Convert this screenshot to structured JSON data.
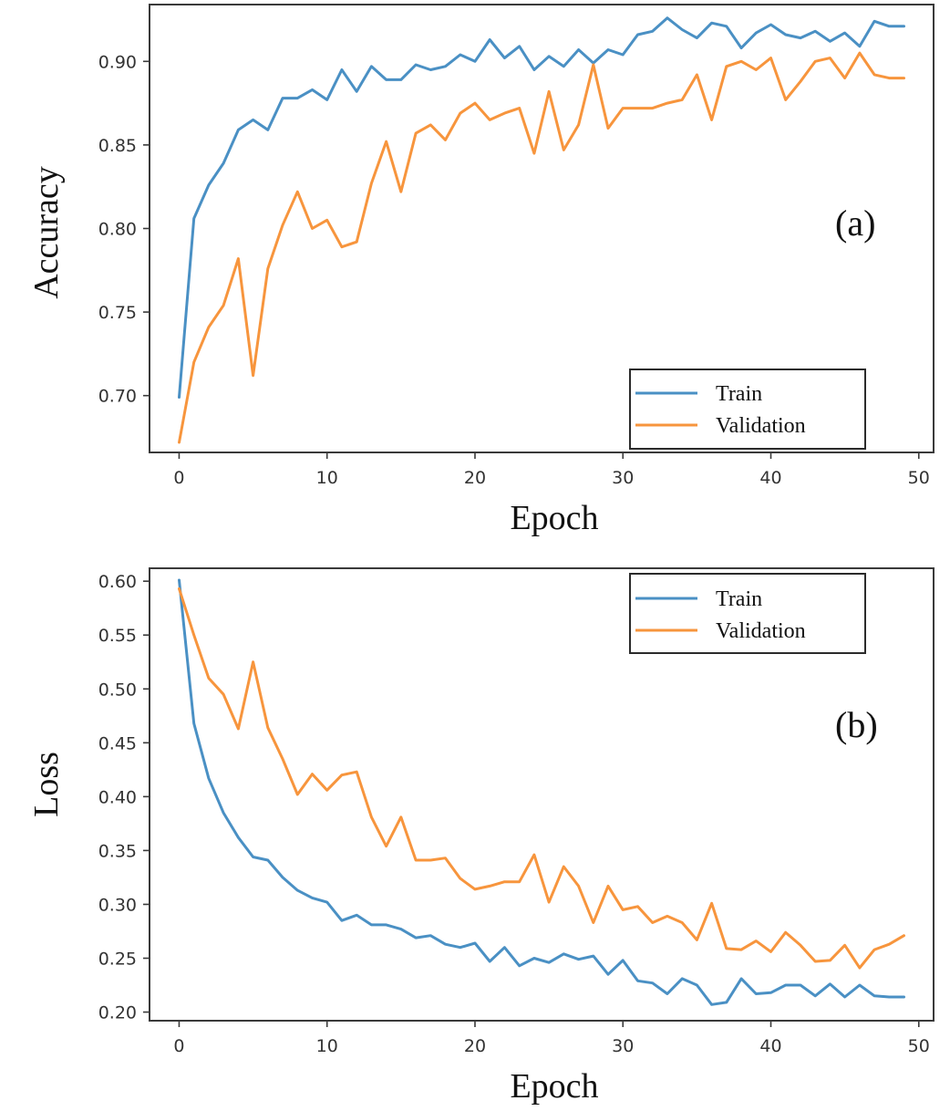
{
  "chart_data": [
    {
      "type": "line",
      "panel_label": "(a)",
      "xlabel": "Epoch",
      "ylabel": "Accuracy",
      "xlim": [
        -2,
        51
      ],
      "ylim": [
        0.666,
        0.934
      ],
      "xticks": [
        0,
        10,
        20,
        30,
        40,
        50
      ],
      "yticks": [
        0.7,
        0.75,
        0.8,
        0.85,
        0.9
      ],
      "ytick_labels": [
        "0.70",
        "0.75",
        "0.80",
        "0.85",
        "0.90"
      ],
      "grid": false,
      "legend_position": "bottom-right",
      "x": [
        0,
        1,
        2,
        3,
        4,
        5,
        6,
        7,
        8,
        9,
        10,
        11,
        12,
        13,
        14,
        15,
        16,
        17,
        18,
        19,
        20,
        21,
        22,
        23,
        24,
        25,
        26,
        27,
        28,
        29,
        30,
        31,
        32,
        33,
        34,
        35,
        36,
        37,
        38,
        39,
        40,
        41,
        42,
        43,
        44,
        45,
        46,
        47,
        48,
        49
      ],
      "series": [
        {
          "name": "Train",
          "color": "#4a90c4",
          "values": [
            0.699,
            0.806,
            0.826,
            0.839,
            0.859,
            0.865,
            0.859,
            0.878,
            0.878,
            0.883,
            0.877,
            0.895,
            0.882,
            0.897,
            0.889,
            0.889,
            0.898,
            0.895,
            0.897,
            0.904,
            0.9,
            0.913,
            0.902,
            0.909,
            0.895,
            0.903,
            0.897,
            0.907,
            0.899,
            0.907,
            0.904,
            0.916,
            0.918,
            0.926,
            0.919,
            0.914,
            0.923,
            0.921,
            0.908,
            0.917,
            0.922,
            0.916,
            0.914,
            0.918,
            0.912,
            0.917,
            0.909,
            0.924,
            0.921,
            0.921
          ]
        },
        {
          "name": "Validation",
          "color": "#f7953d",
          "values": [
            0.672,
            0.72,
            0.741,
            0.754,
            0.782,
            0.712,
            0.776,
            0.802,
            0.822,
            0.8,
            0.805,
            0.789,
            0.792,
            0.827,
            0.852,
            0.822,
            0.857,
            0.862,
            0.853,
            0.869,
            0.875,
            0.865,
            0.869,
            0.872,
            0.845,
            0.882,
            0.847,
            0.862,
            0.898,
            0.86,
            0.872,
            0.872,
            0.872,
            0.875,
            0.877,
            0.892,
            0.865,
            0.897,
            0.9,
            0.895,
            0.902,
            0.877,
            0.888,
            0.9,
            0.902,
            0.89,
            0.905,
            0.892,
            0.89,
            0.89
          ]
        }
      ]
    },
    {
      "type": "line",
      "panel_label": "(b)",
      "xlabel": "Epoch",
      "ylabel": "Loss",
      "xlim": [
        -2,
        51
      ],
      "ylim": [
        0.192,
        0.612
      ],
      "xticks": [
        0,
        10,
        20,
        30,
        40,
        50
      ],
      "yticks": [
        0.2,
        0.25,
        0.3,
        0.35,
        0.4,
        0.45,
        0.5,
        0.55,
        0.6
      ],
      "ytick_labels": [
        "0.20",
        "0.25",
        "0.30",
        "0.35",
        "0.40",
        "0.45",
        "0.50",
        "0.55",
        "0.60"
      ],
      "grid": false,
      "legend_position": "top-right",
      "x": [
        0,
        1,
        2,
        3,
        4,
        5,
        6,
        7,
        8,
        9,
        10,
        11,
        12,
        13,
        14,
        15,
        16,
        17,
        18,
        19,
        20,
        21,
        22,
        23,
        24,
        25,
        26,
        27,
        28,
        29,
        30,
        31,
        32,
        33,
        34,
        35,
        36,
        37,
        38,
        39,
        40,
        41,
        42,
        43,
        44,
        45,
        46,
        47,
        48,
        49
      ],
      "series": [
        {
          "name": "Train",
          "color": "#4a90c4",
          "values": [
            0.601,
            0.468,
            0.417,
            0.385,
            0.362,
            0.344,
            0.341,
            0.325,
            0.313,
            0.306,
            0.302,
            0.285,
            0.29,
            0.281,
            0.281,
            0.277,
            0.269,
            0.271,
            0.263,
            0.26,
            0.264,
            0.247,
            0.26,
            0.243,
            0.25,
            0.246,
            0.254,
            0.249,
            0.252,
            0.235,
            0.248,
            0.229,
            0.227,
            0.217,
            0.231,
            0.225,
            0.207,
            0.209,
            0.231,
            0.217,
            0.218,
            0.225,
            0.225,
            0.215,
            0.226,
            0.214,
            0.225,
            0.215,
            0.214,
            0.214
          ]
        },
        {
          "name": "Validation",
          "color": "#f7953d",
          "values": [
            0.593,
            0.55,
            0.51,
            0.495,
            0.463,
            0.525,
            0.464,
            0.435,
            0.402,
            0.421,
            0.406,
            0.42,
            0.423,
            0.381,
            0.354,
            0.381,
            0.341,
            0.341,
            0.343,
            0.324,
            0.314,
            0.317,
            0.321,
            0.321,
            0.346,
            0.302,
            0.335,
            0.317,
            0.283,
            0.317,
            0.295,
            0.298,
            0.283,
            0.289,
            0.283,
            0.267,
            0.301,
            0.259,
            0.258,
            0.266,
            0.256,
            0.274,
            0.262,
            0.247,
            0.248,
            0.262,
            0.241,
            0.258,
            0.263,
            0.271
          ]
        }
      ]
    }
  ]
}
